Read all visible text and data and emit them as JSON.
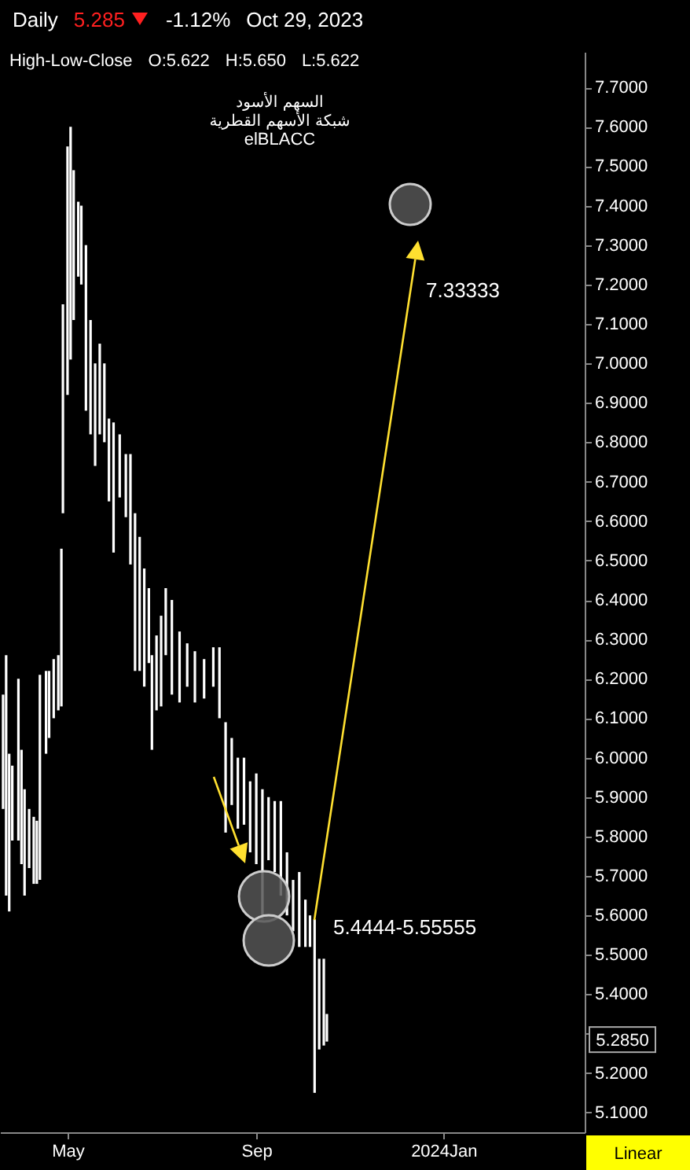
{
  "chart_data": {
    "type": "bar",
    "x": [
      "2023-03-20",
      "2023-03-22",
      "2023-03-24",
      "2023-03-26",
      "2023-03-30",
      "2023-04-01",
      "2023-04-03",
      "2023-04-06",
      "2023-04-09",
      "2023-04-11",
      "2023-04-13",
      "2023-04-17",
      "2023-04-19",
      "2023-04-22",
      "2023-04-25",
      "2023-04-27",
      "2023-04-28",
      "2023-05-01",
      "2023-05-03",
      "2023-05-05",
      "2023-05-08",
      "2023-05-10",
      "2023-05-13",
      "2023-05-16",
      "2023-05-19",
      "2023-05-22",
      "2023-05-25",
      "2023-05-28",
      "2023-05-31",
      "2023-06-04",
      "2023-06-08",
      "2023-06-11",
      "2023-06-14",
      "2023-06-17",
      "2023-06-20",
      "2023-06-23",
      "2023-06-25",
      "2023-06-28",
      "2023-07-01",
      "2023-07-04",
      "2023-07-08",
      "2023-07-13",
      "2023-07-18",
      "2023-07-23",
      "2023-07-29",
      "2023-08-04",
      "2023-08-08",
      "2023-08-12",
      "2023-08-16",
      "2023-08-20",
      "2023-08-24",
      "2023-08-28",
      "2023-09-01",
      "2023-09-05",
      "2023-09-09",
      "2023-09-13",
      "2023-09-17",
      "2023-09-21",
      "2023-09-25",
      "2023-09-29",
      "2023-10-03",
      "2023-10-06",
      "2023-10-09",
      "2023-10-12",
      "2023-10-15",
      "2023-10-17"
    ],
    "base": [
      5.87,
      5.65,
      5.61,
      5.79,
      5.79,
      5.73,
      5.65,
      5.72,
      5.68,
      5.68,
      5.69,
      6.01,
      6.05,
      6.1,
      6.12,
      6.13,
      6.62,
      6.92,
      7.01,
      7.11,
      7.22,
      7.2,
      6.88,
      6.82,
      6.74,
      6.82,
      6.8,
      6.65,
      6.52,
      6.66,
      6.61,
      6.49,
      6.22,
      6.22,
      6.18,
      6.24,
      6.02,
      6.12,
      6.13,
      6.26,
      6.16,
      6.14,
      6.18,
      6.14,
      6.15,
      6.18,
      6.1,
      5.81,
      5.88,
      5.82,
      5.83,
      5.76,
      5.73,
      5.59,
      5.74,
      5.71,
      5.65,
      5.6,
      5.56,
      5.52,
      5.52,
      5.52,
      5.15,
      5.26,
      5.27,
      5.28
    ],
    "values": [
      0.29,
      0.61,
      0.4,
      0.19,
      0.41,
      0.29,
      0.27,
      0.15,
      0.17,
      0.16,
      0.52,
      0.21,
      0.17,
      0.15,
      0.14,
      0.4,
      0.53,
      0.63,
      0.59,
      0.38,
      0.19,
      0.2,
      0.42,
      0.29,
      0.26,
      0.23,
      0.2,
      0.21,
      0.33,
      0.16,
      0.16,
      0.28,
      0.4,
      0.34,
      0.3,
      0.19,
      0.24,
      0.19,
      0.23,
      0.17,
      0.24,
      0.18,
      0.11,
      0.13,
      0.1,
      0.1,
      0.18,
      0.28,
      0.17,
      0.18,
      0.17,
      0.18,
      0.23,
      0.33,
      0.16,
      0.18,
      0.24,
      0.16,
      0.13,
      0.19,
      0.12,
      0.08,
      0.44,
      0.23,
      0.22,
      0.07
    ],
    "color": "#ffffff",
    "xlim": [
      "2023-03-18",
      "2024-04-02"
    ],
    "xticks": [
      {
        "value": "2023-05-01",
        "label": "May"
      },
      {
        "value": "2023-09-01",
        "label": "Sep"
      },
      {
        "value": "2024-01-01",
        "label": "2024Jan"
      }
    ],
    "ylim": [
      5.05,
      7.79
    ],
    "yticks": [
      {
        "value": 5.1,
        "label": "5.1000"
      },
      {
        "value": 5.2,
        "label": "5.2000"
      },
      {
        "value": 5.3,
        "label": null
      },
      {
        "value": 5.4,
        "label": "5.4000"
      },
      {
        "value": 5.5,
        "label": "5.5000"
      },
      {
        "value": 5.6,
        "label": "5.6000"
      },
      {
        "value": 5.7,
        "label": "5.7000"
      },
      {
        "value": 5.8,
        "label": "5.8000"
      },
      {
        "value": 5.9,
        "label": "5.9000"
      },
      {
        "value": 6.0,
        "label": "6.0000"
      },
      {
        "value": 6.1,
        "label": "6.1000"
      },
      {
        "value": 6.2,
        "label": "6.2000"
      },
      {
        "value": 6.3,
        "label": "6.3000"
      },
      {
        "value": 6.4,
        "label": "6.4000"
      },
      {
        "value": 6.5,
        "label": "6.5000"
      },
      {
        "value": 6.6,
        "label": "6.6000"
      },
      {
        "value": 6.7,
        "label": "6.7000"
      },
      {
        "value": 6.8,
        "label": "6.8000"
      },
      {
        "value": 6.9,
        "label": "6.9000"
      },
      {
        "value": 7.0,
        "label": "7.0000"
      },
      {
        "value": 7.1,
        "label": "7.1000"
      },
      {
        "value": 7.2,
        "label": "7.2000"
      },
      {
        "value": 7.3,
        "label": "7.3000"
      },
      {
        "value": 7.4,
        "label": "7.4000"
      },
      {
        "value": 7.5,
        "label": "7.5000"
      },
      {
        "value": 7.6,
        "label": "7.6000"
      },
      {
        "value": 7.7,
        "label": "7.7000"
      }
    ],
    "grid": false,
    "annotations": [
      "Daily",
      "5.285",
      "-1.12%",
      "Oct 29, 2023",
      "High-Low-Close",
      "O:5.622",
      "H:5.650",
      "L:5.622",
      "السهم الأسود",
      "شبكة الأسهم القطرية",
      "elBLACC",
      "7.33333",
      "5.4444-5.55555",
      "5.2850",
      "Linear"
    ]
  }
}
